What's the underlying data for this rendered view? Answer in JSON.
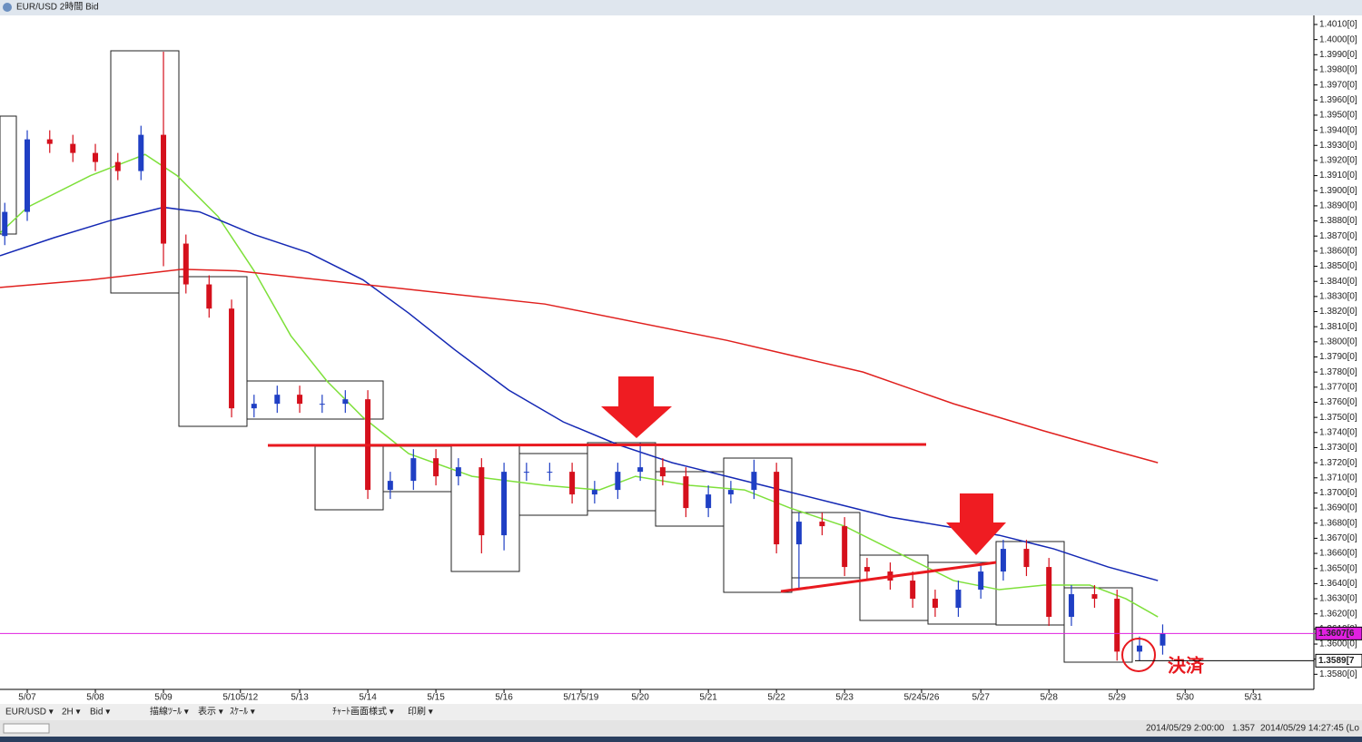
{
  "ui": {
    "window_title": "EUR/USD 2時間 Bid",
    "toolbar": [
      "EUR/USD ▾",
      "2H ▾",
      "Bid ▾",
      "描線ﾂｰﾙ ▾",
      "表示 ▾",
      "ｽｹｰﾙ ▾",
      "ﾁｬｰﾄ画面様式 ▾",
      "印刷 ▾"
    ],
    "status": [
      "2014/05/29 2:00:00",
      "1.357",
      "2014/05/29 14:27:45 (Lo"
    ]
  },
  "chart_data": {
    "type": "candlestick",
    "x": [
      -0.33,
      0,
      0.33,
      0.67,
      1,
      1.33,
      1.67,
      2,
      2.33,
      2.67,
      3,
      3.33,
      3.67,
      4,
      4.33,
      4.67,
      5,
      5.33,
      5.67,
      6,
      6.33,
      6.67,
      7,
      7.33,
      7.67,
      8,
      8.33,
      8.67,
      9,
      9.33,
      9.67,
      10,
      10.33,
      10.67,
      11,
      11.33,
      11.67,
      12,
      12.33,
      12.67,
      13,
      13.33,
      13.67,
      14,
      14.33,
      14.67,
      15,
      15.33,
      15.67,
      16,
      16.33,
      16.67
    ],
    "open": [
      1.387,
      1.3886,
      1.3934,
      1.3931,
      1.3925,
      1.3919,
      1.3913,
      1.3937,
      1.3865,
      1.3838,
      1.3822,
      1.3756,
      1.3759,
      1.3765,
      1.3759,
      1.3759,
      1.3762,
      1.3702,
      1.3708,
      1.3723,
      1.3711,
      1.3717,
      1.3672,
      1.3714,
      1.3714,
      1.3714,
      1.3699,
      1.3702,
      1.3714,
      1.3717,
      1.3711,
      1.369,
      1.3699,
      1.3702,
      1.3714,
      1.3666,
      1.3681,
      1.3678,
      1.3651,
      1.3648,
      1.3642,
      1.363,
      1.3624,
      1.3636,
      1.3648,
      1.3663,
      1.3651,
      1.3618,
      1.3633,
      1.363,
      1.3595,
      1.3599
    ],
    "high": [
      1.3892,
      1.394,
      1.394,
      1.3937,
      1.3931,
      1.3925,
      1.3943,
      1.3992,
      1.3871,
      1.3844,
      1.3828,
      1.3765,
      1.3771,
      1.3771,
      1.3765,
      1.3768,
      1.3768,
      1.3714,
      1.3729,
      1.3729,
      1.3723,
      1.3723,
      1.372,
      1.372,
      1.372,
      1.372,
      1.3708,
      1.372,
      1.3733,
      1.3723,
      1.3717,
      1.3705,
      1.3708,
      1.3722,
      1.372,
      1.3687,
      1.3687,
      1.3684,
      1.3657,
      1.3654,
      1.3648,
      1.3636,
      1.3642,
      1.3654,
      1.3669,
      1.3669,
      1.3657,
      1.3639,
      1.3639,
      1.3636,
      1.3605,
      1.3613
    ],
    "low": [
      1.3864,
      1.388,
      1.3925,
      1.3919,
      1.3913,
      1.3907,
      1.3907,
      1.385,
      1.3832,
      1.3816,
      1.375,
      1.375,
      1.3753,
      1.3753,
      1.3753,
      1.3753,
      1.3696,
      1.3696,
      1.3702,
      1.3705,
      1.3705,
      1.366,
      1.3662,
      1.3708,
      1.3708,
      1.3693,
      1.3693,
      1.3696,
      1.3708,
      1.3705,
      1.3684,
      1.3684,
      1.3693,
      1.3696,
      1.366,
      1.3636,
      1.3672,
      1.3645,
      1.3642,
      1.3636,
      1.3624,
      1.3618,
      1.3618,
      1.363,
      1.3642,
      1.3645,
      1.3612,
      1.3612,
      1.3624,
      1.3589,
      1.3589,
      1.3593
    ],
    "close": [
      1.3886,
      1.3934,
      1.3931,
      1.3925,
      1.3919,
      1.3913,
      1.3937,
      1.3865,
      1.3838,
      1.3822,
      1.3756,
      1.3759,
      1.3765,
      1.3759,
      1.3759,
      1.3762,
      1.3702,
      1.3708,
      1.3723,
      1.3711,
      1.3717,
      1.3672,
      1.3714,
      1.3714,
      1.3714,
      1.3699,
      1.3702,
      1.3714,
      1.3717,
      1.3711,
      1.369,
      1.3699,
      1.3702,
      1.3714,
      1.3666,
      1.3681,
      1.3678,
      1.3651,
      1.3648,
      1.3642,
      1.363,
      1.3624,
      1.3636,
      1.3648,
      1.3663,
      1.3651,
      1.3618,
      1.3633,
      1.363,
      1.3595,
      1.3599,
      1.3607
    ],
    "up_color": "#1f3fc4",
    "down_color": "#d5101c",
    "lines": [
      {
        "color": "#7ee03a",
        "x": [
          -0.4,
          0,
          0.93,
          1.73,
          2.2,
          2.8,
          3.33,
          3.87,
          4.4,
          4.93,
          5.6,
          6.53,
          7.6,
          8.4,
          8.93,
          9.73,
          10.53,
          11.2,
          12,
          12.8,
          13.6,
          14.27,
          14.93,
          15.6,
          16.13,
          16.6
        ],
        "values": [
          1.3872,
          1.3889,
          1.391,
          1.3924,
          1.391,
          1.3883,
          1.3847,
          1.3804,
          1.3774,
          1.375,
          1.3726,
          1.3711,
          1.3705,
          1.3702,
          1.3711,
          1.3705,
          1.3702,
          1.369,
          1.3678,
          1.366,
          1.3642,
          1.3636,
          1.3639,
          1.3639,
          1.363,
          1.3618
        ]
      },
      {
        "color": "#1428b4",
        "x": [
          -0.4,
          0.4,
          1.2,
          2,
          2.53,
          3.33,
          4.13,
          4.93,
          5.6,
          6.27,
          7.07,
          7.87,
          8.67,
          9.47,
          10.27,
          11.07,
          11.87,
          12.67,
          13.47,
          14.27,
          15.07,
          15.87,
          16.6
        ],
        "values": [
          1.3857,
          1.3869,
          1.388,
          1.3889,
          1.3886,
          1.3871,
          1.3859,
          1.3841,
          1.3819,
          1.3795,
          1.3768,
          1.3747,
          1.3732,
          1.372,
          1.3711,
          1.3702,
          1.3693,
          1.3684,
          1.3678,
          1.3672,
          1.3663,
          1.3651,
          1.3642
        ]
      },
      {
        "color": "#e0201e",
        "x": [
          -0.4,
          0.93,
          2.27,
          3.07,
          4.93,
          7.6,
          10.27,
          12.27,
          13.6,
          14.93,
          15.87,
          16.6
        ],
        "values": [
          1.3836,
          1.3841,
          1.3848,
          1.3847,
          1.3838,
          1.3825,
          1.3801,
          1.378,
          1.3759,
          1.3741,
          1.3729,
          1.372
        ]
      }
    ],
    "xlim": [
      -0.4,
      18.89
    ],
    "xticks": [
      {
        "value": 0,
        "label": "5/07"
      },
      {
        "value": 1,
        "label": "5/08"
      },
      {
        "value": 2,
        "label": "5/09"
      },
      {
        "value": 3.13,
        "label": "5/105/12"
      },
      {
        "value": 4,
        "label": "5/13"
      },
      {
        "value": 5,
        "label": "5/14"
      },
      {
        "value": 6,
        "label": "5/15"
      },
      {
        "value": 7,
        "label": "5/16"
      },
      {
        "value": 8.13,
        "label": "5/175/19"
      },
      {
        "value": 9,
        "label": "5/20"
      },
      {
        "value": 10,
        "label": "5/21"
      },
      {
        "value": 11,
        "label": "5/22"
      },
      {
        "value": 12,
        "label": "5/23"
      },
      {
        "value": 13.13,
        "label": "5/245/26"
      },
      {
        "value": 14,
        "label": "5/27"
      },
      {
        "value": 15,
        "label": "5/28"
      },
      {
        "value": 16,
        "label": "5/29"
      },
      {
        "value": 17,
        "label": "5/30"
      },
      {
        "value": 18,
        "label": "5/31"
      }
    ],
    "ylim": [
      1.357,
      1.4016
    ],
    "yticks": [
      {
        "value": 1.358,
        "label": "1.3580[0]"
      },
      {
        "value": 1.359,
        "label": "1.3590[0]"
      },
      {
        "value": 1.36,
        "label": "1.3600[0]"
      },
      {
        "value": 1.361,
        "label": "1.3610[0]"
      },
      {
        "value": 1.362,
        "label": "1.3620[0]"
      },
      {
        "value": 1.363,
        "label": "1.3630[0]"
      },
      {
        "value": 1.364,
        "label": "1.3640[0]"
      },
      {
        "value": 1.365,
        "label": "1.3650[0]"
      },
      {
        "value": 1.366,
        "label": "1.3660[0]"
      },
      {
        "value": 1.367,
        "label": "1.3670[0]"
      },
      {
        "value": 1.368,
        "label": "1.3680[0]"
      },
      {
        "value": 1.369,
        "label": "1.3690[0]"
      },
      {
        "value": 1.37,
        "label": "1.3700[0]"
      },
      {
        "value": 1.371,
        "label": "1.3710[0]"
      },
      {
        "value": 1.372,
        "label": "1.3720[0]"
      },
      {
        "value": 1.373,
        "label": "1.3730[0]"
      },
      {
        "value": 1.374,
        "label": "1.3740[0]"
      },
      {
        "value": 1.375,
        "label": "1.3750[0]"
      },
      {
        "value": 1.376,
        "label": "1.3760[0]"
      },
      {
        "value": 1.377,
        "label": "1.3770[0]"
      },
      {
        "value": 1.378,
        "label": "1.3780[0]"
      },
      {
        "value": 1.379,
        "label": "1.3790[0]"
      },
      {
        "value": 1.38,
        "label": "1.3800[0]"
      },
      {
        "value": 1.381,
        "label": "1.3810[0]"
      },
      {
        "value": 1.382,
        "label": "1.3820[0]"
      },
      {
        "value": 1.383,
        "label": "1.3830[0]"
      },
      {
        "value": 1.384,
        "label": "1.3840[0]"
      },
      {
        "value": 1.385,
        "label": "1.3850[0]"
      },
      {
        "value": 1.386,
        "label": "1.3860[0]"
      },
      {
        "value": 1.387,
        "label": "1.3870[0]"
      },
      {
        "value": 1.388,
        "label": "1.3880[0]"
      },
      {
        "value": 1.389,
        "label": "1.3890[0]"
      },
      {
        "value": 1.39,
        "label": "1.3900[0]"
      },
      {
        "value": 1.391,
        "label": "1.3910[0]"
      },
      {
        "value": 1.392,
        "label": "1.3920[0]"
      },
      {
        "value": 1.393,
        "label": "1.3930[0]"
      },
      {
        "value": 1.394,
        "label": "1.3940[0]"
      },
      {
        "value": 1.395,
        "label": "1.3950[0]"
      },
      {
        "value": 1.396,
        "label": "1.3960[0]"
      },
      {
        "value": 1.397,
        "label": "1.3970[0]"
      },
      {
        "value": 1.398,
        "label": "1.3980[0]"
      },
      {
        "value": 1.399,
        "label": "1.3990[0]"
      },
      {
        "value": 1.4,
        "label": "1.4000[0]"
      },
      {
        "value": 1.401,
        "label": "1.4010[0]"
      }
    ],
    "price_labels": [
      {
        "value": 1.3607,
        "label": "1.3607[6",
        "color": "#e020e0"
      },
      {
        "value": 1.3589,
        "label": "1.3589[7",
        "color": "#ffffff"
      }
    ],
    "annotation": "決済"
  }
}
